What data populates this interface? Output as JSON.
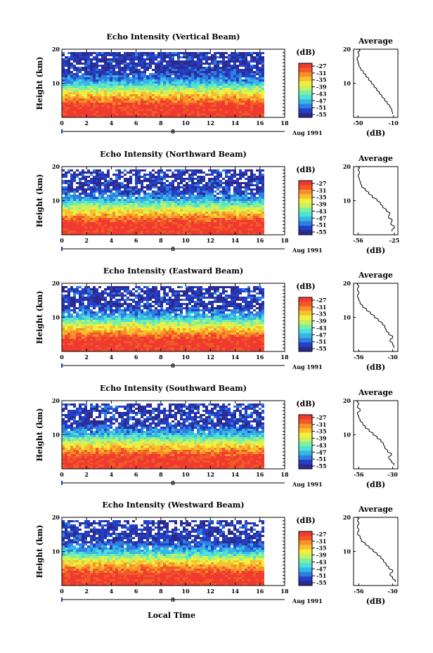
{
  "figure": {
    "time_axis_label": "Local Time",
    "colorbar": {
      "unit_label": "(dB)",
      "tick_labels": [
        "-27",
        "-31",
        "-35",
        "-39",
        "-43",
        "-47",
        "-51",
        "-55"
      ],
      "colors": [
        "#2c2a8f",
        "#2440c8",
        "#2f7ee0",
        "#37b7e6",
        "#4fe0d8",
        "#7cf0a0",
        "#c8f060",
        "#f0f040",
        "#f8c030",
        "#f89028",
        "#f05a28",
        "#f03a30"
      ]
    },
    "date_label": "Aug 1991",
    "date_marker": "8"
  },
  "chart_data": [
    {
      "type": "heatmap",
      "title": "Echo Intensity (Vertical Beam)",
      "ylabel": "Height (km)",
      "xlabel": "Local Time",
      "x_ticks": [
        "0",
        "2",
        "4",
        "6",
        "8",
        "10",
        "12",
        "14",
        "16",
        "18"
      ],
      "y_ticks": [
        "10",
        "20"
      ],
      "xlim": [
        0,
        18
      ],
      "ylim": [
        0,
        20
      ],
      "data_x_extent": [
        0,
        16.3
      ],
      "avg_profile": {
        "title": "Average",
        "xlabel": "(dB)",
        "x_ticks": [
          "-50",
          "-10"
        ],
        "xlim": [
          -55,
          -5
        ],
        "y_ticks": [
          "10",
          "20"
        ],
        "x": [
          -11,
          -12,
          -14,
          -17,
          -20,
          -23,
          -26,
          -29,
          -32,
          -35,
          -38,
          -41,
          -44,
          -47,
          -49,
          -50,
          -51,
          -49,
          -50,
          -48,
          -50
        ],
        "y": [
          1,
          2,
          3,
          4,
          5,
          6,
          7,
          8,
          9,
          10,
          11,
          12,
          13,
          14,
          15,
          16,
          17,
          18,
          19,
          19.5,
          20
        ]
      }
    },
    {
      "type": "heatmap",
      "title": "Echo Intensity (Northward Beam)",
      "ylabel": "Height (km)",
      "xlabel": "Local Time",
      "x_ticks": [
        "0",
        "2",
        "4",
        "6",
        "8",
        "10",
        "12",
        "14",
        "16",
        "18"
      ],
      "y_ticks": [
        "10",
        "20"
      ],
      "xlim": [
        0,
        18
      ],
      "ylim": [
        0,
        20
      ],
      "data_x_extent": [
        0,
        16.3
      ],
      "avg_profile": {
        "title": "Average",
        "xlabel": "(dB)",
        "x_ticks": [
          "-56",
          "-25"
        ],
        "xlim": [
          -60,
          -22
        ],
        "y_ticks": [
          "10",
          "20"
        ],
        "x": [
          -27,
          -25,
          -28,
          -27,
          -30,
          -29,
          -32,
          -35,
          -37,
          -40,
          -44,
          -47,
          -50,
          -53,
          -54,
          -55,
          -56,
          -55,
          -56,
          -55,
          -57
        ],
        "y": [
          1,
          2,
          3,
          4,
          5,
          6,
          7,
          8,
          9,
          10,
          11,
          12,
          13,
          14,
          15,
          16,
          17,
          18,
          19,
          19.5,
          20
        ]
      }
    },
    {
      "type": "heatmap",
      "title": "Echo Intensity (Eastward Beam)",
      "ylabel": "Height (km)",
      "xlabel": "Local Time",
      "x_ticks": [
        "0",
        "2",
        "4",
        "6",
        "8",
        "10",
        "12",
        "14",
        "16",
        "18"
      ],
      "y_ticks": [
        "10",
        "20"
      ],
      "xlim": [
        0,
        18
      ],
      "ylim": [
        0,
        20
      ],
      "data_x_extent": [
        0,
        16.3
      ],
      "avg_profile": {
        "title": "Average",
        "xlabel": "(dB)",
        "x_ticks": [
          "-56",
          "-30"
        ],
        "xlim": [
          -60,
          -26
        ],
        "y_ticks": [
          "10",
          "20"
        ],
        "x": [
          -29,
          -30,
          -32,
          -30,
          -33,
          -35,
          -36,
          -38,
          -41,
          -44,
          -47,
          -50,
          -53,
          -55,
          -56,
          -57,
          -56,
          -57,
          -56,
          -57,
          -58
        ],
        "y": [
          1,
          2,
          3,
          4,
          5,
          6,
          7,
          8,
          9,
          10,
          11,
          12,
          13,
          14,
          15,
          16,
          17,
          18,
          19,
          19.5,
          20
        ]
      }
    },
    {
      "type": "heatmap",
      "title": "Echo Intensity (Southward Beam)",
      "ylabel": "Height (km)",
      "xlabel": "Local Time",
      "x_ticks": [
        "0",
        "2",
        "4",
        "6",
        "8",
        "10",
        "12",
        "14",
        "16",
        "18"
      ],
      "y_ticks": [
        "10",
        "20"
      ],
      "xlim": [
        0,
        18
      ],
      "ylim": [
        0,
        20
      ],
      "data_x_extent": [
        0,
        16.3
      ],
      "avg_profile": {
        "title": "Average",
        "xlabel": "(dB)",
        "x_ticks": [
          "-56",
          "-30"
        ],
        "xlim": [
          -60,
          -26
        ],
        "y_ticks": [
          "10",
          "20"
        ],
        "x": [
          -29,
          -31,
          -33,
          -31,
          -34,
          -36,
          -37,
          -39,
          -42,
          -45,
          -48,
          -51,
          -53,
          -55,
          -56,
          -57,
          -55,
          -57,
          -56,
          -57,
          -58
        ],
        "y": [
          1,
          2,
          3,
          4,
          5,
          6,
          7,
          8,
          9,
          10,
          11,
          12,
          13,
          14,
          15,
          16,
          17,
          18,
          19,
          19.5,
          20
        ]
      }
    },
    {
      "type": "heatmap",
      "title": "Echo Intensity (Westward Beam)",
      "ylabel": "Height (km)",
      "xlabel": "Local Time",
      "x_ticks": [
        "0",
        "2",
        "4",
        "6",
        "8",
        "10",
        "12",
        "14",
        "16",
        "18"
      ],
      "y_ticks": [
        "10",
        "20"
      ],
      "xlim": [
        0,
        18
      ],
      "ylim": [
        0,
        20
      ],
      "data_x_extent": [
        0,
        16.3
      ],
      "avg_profile": {
        "title": "Average",
        "xlabel": "(dB)",
        "x_ticks": [
          "-56",
          "-30"
        ],
        "xlim": [
          -60,
          -26
        ],
        "y_ticks": [
          "10",
          "20"
        ],
        "x": [
          -28,
          -30,
          -32,
          -30,
          -33,
          -35,
          -37,
          -39,
          -42,
          -45,
          -48,
          -51,
          -54,
          -55,
          -57,
          -56,
          -57,
          -56,
          -57,
          -56,
          -58
        ],
        "y": [
          1,
          2,
          3,
          4,
          5,
          6,
          7,
          8,
          9,
          10,
          11,
          12,
          13,
          14,
          15,
          16,
          17,
          18,
          19,
          19.5,
          20
        ]
      }
    }
  ]
}
